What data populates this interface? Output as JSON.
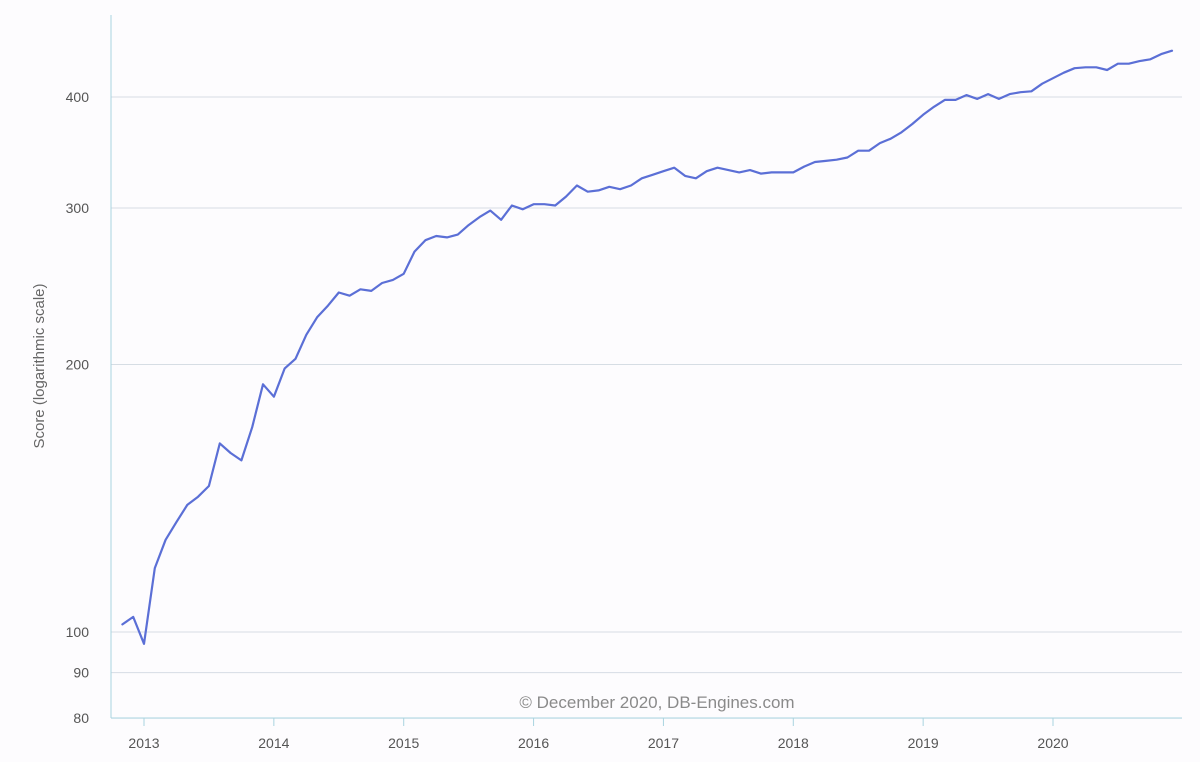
{
  "chart_data": {
    "type": "line",
    "title": "",
    "xlabel": "",
    "ylabel": "Score (logarithmic scale)",
    "yscale": "log",
    "ylim": [
      80,
      480
    ],
    "xlim": [
      "2012-11",
      "2020-12"
    ],
    "grid": true,
    "legend": "none",
    "line_color": "#5b6fd6",
    "grid_color": "#d6dde4",
    "axis_color": "#a9d4e0",
    "y_ticks": [
      80,
      90,
      100,
      200,
      300,
      400
    ],
    "y_tick_labels": [
      "80",
      "90",
      "100",
      "200",
      "300",
      "400"
    ],
    "x_ticks": [
      "2013",
      "2014",
      "2015",
      "2016",
      "2017",
      "2018",
      "2019",
      "2020"
    ],
    "annotation": "© December 2020, DB-Engines.com",
    "series": [
      {
        "x": [
          "2012-11",
          "2012-12",
          "2013-01",
          "2013-02",
          "2013-03",
          "2013-04",
          "2013-05",
          "2013-06",
          "2013-07",
          "2013-08",
          "2013-09",
          "2013-10",
          "2013-11",
          "2013-12",
          "2014-01",
          "2014-02",
          "2014-03",
          "2014-04",
          "2014-05",
          "2014-06",
          "2014-07",
          "2014-08",
          "2014-09",
          "2014-10",
          "2014-11",
          "2014-12",
          "2015-01",
          "2015-02",
          "2015-03",
          "2015-04",
          "2015-05",
          "2015-06",
          "2015-07",
          "2015-08",
          "2015-09",
          "2015-10",
          "2015-11",
          "2015-12",
          "2016-01",
          "2016-02",
          "2016-03",
          "2016-04",
          "2016-05",
          "2016-06",
          "2016-07",
          "2016-08",
          "2016-09",
          "2016-10",
          "2016-11",
          "2016-12",
          "2017-01",
          "2017-02",
          "2017-03",
          "2017-04",
          "2017-05",
          "2017-06",
          "2017-07",
          "2017-08",
          "2017-09",
          "2017-10",
          "2017-11",
          "2017-12",
          "2018-01",
          "2018-02",
          "2018-03",
          "2018-04",
          "2018-05",
          "2018-06",
          "2018-07",
          "2018-08",
          "2018-09",
          "2018-10",
          "2018-11",
          "2018-12",
          "2019-01",
          "2019-02",
          "2019-03",
          "2019-04",
          "2019-05",
          "2019-06",
          "2019-07",
          "2019-08",
          "2019-09",
          "2019-10",
          "2019-11",
          "2019-12",
          "2020-01",
          "2020-02",
          "2020-03",
          "2020-04",
          "2020-05",
          "2020-06",
          "2020-07",
          "2020-08",
          "2020-09",
          "2020-10",
          "2020-11",
          "2020-12"
        ],
        "y": [
          102,
          104,
          97,
          118,
          127,
          133,
          139,
          142,
          146,
          163,
          159,
          156,
          170,
          190,
          184,
          198,
          203,
          216,
          226,
          233,
          241,
          239,
          243,
          242,
          247,
          249,
          253,
          268,
          276,
          279,
          278,
          280,
          287,
          293,
          298,
          291,
          302,
          299,
          303,
          303,
          302,
          309,
          318,
          313,
          314,
          317,
          315,
          318,
          324,
          327,
          330,
          333,
          326,
          324,
          330,
          333,
          331,
          329,
          331,
          328,
          329,
          329,
          329,
          334,
          338,
          339,
          340,
          342,
          348,
          348,
          355,
          359,
          365,
          373,
          382,
          390,
          397,
          397,
          402,
          398,
          403,
          398,
          403,
          405,
          406,
          414,
          420,
          426,
          431,
          432,
          432,
          429,
          436,
          436,
          439,
          441,
          447,
          451
        ]
      }
    ]
  }
}
